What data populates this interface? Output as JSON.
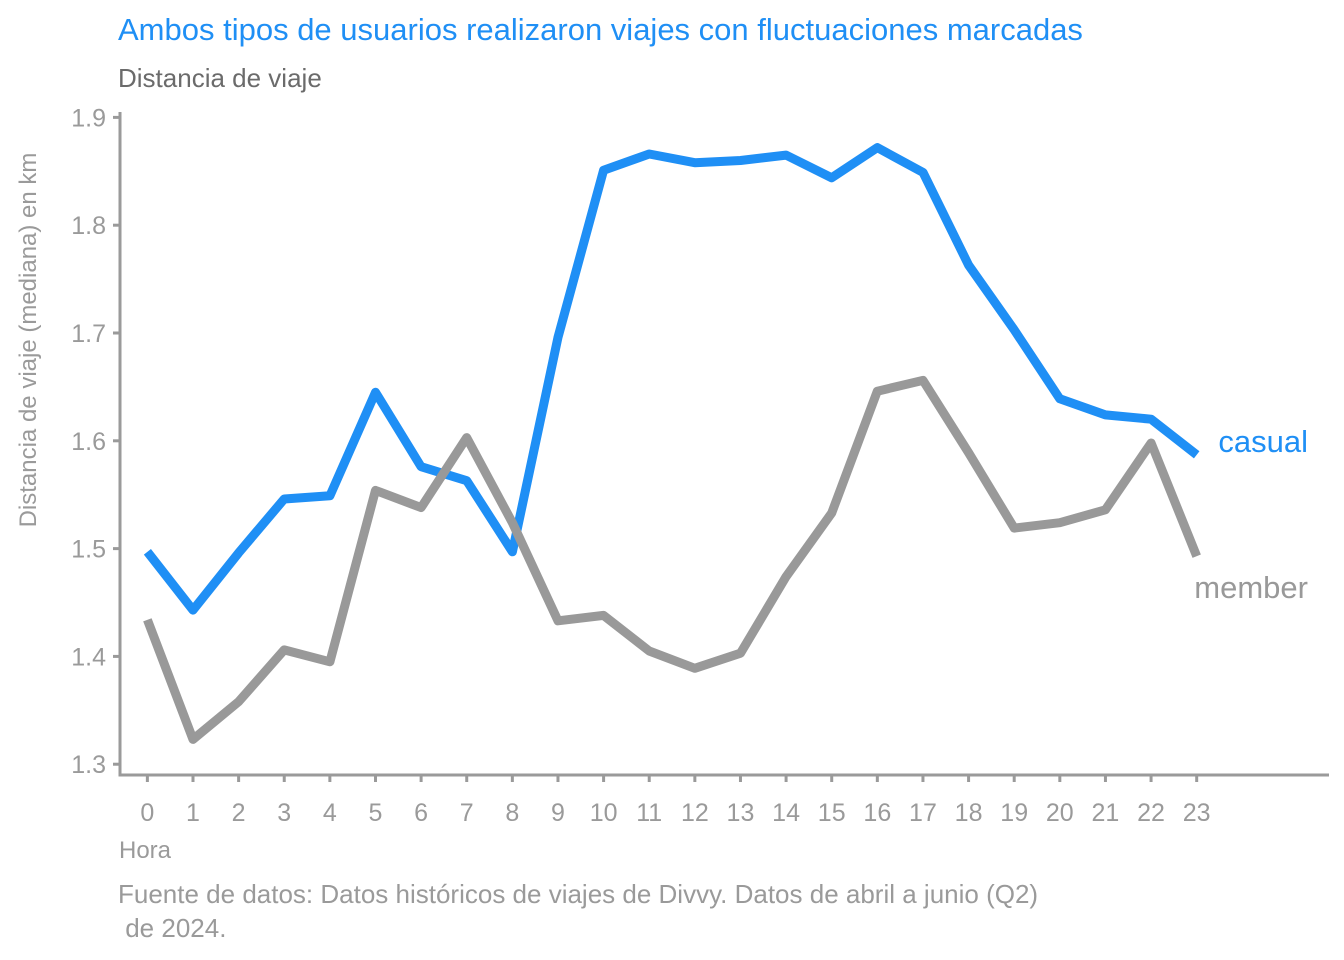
{
  "chart_data": {
    "type": "line",
    "title": "Ambos tipos de usuarios realizaron viajes con fluctuaciones marcadas",
    "subtitle": "Distancia de viaje",
    "xlabel": "Hora",
    "ylabel": "Distancia de viaje (mediana) en km",
    "caption": [
      "Fuente de datos: Datos históricos de viajes de Divvy. Datos de abril a junio (Q2)",
      " de 2024."
    ],
    "x": [
      0,
      1,
      2,
      3,
      4,
      5,
      6,
      7,
      8,
      9,
      10,
      11,
      12,
      13,
      14,
      15,
      16,
      17,
      18,
      19,
      20,
      21,
      22,
      23
    ],
    "xlim": [
      -0.6,
      25.9
    ],
    "ylim": [
      1.29,
      1.905
    ],
    "yticks": [
      1.3,
      1.4,
      1.5,
      1.6,
      1.7,
      1.8,
      1.9
    ],
    "ytick_labels": [
      "1.3",
      "1.4",
      "1.5",
      "1.6",
      "1.7",
      "1.8",
      "1.9"
    ],
    "grid": false,
    "legend": "direct labels at line ends (right)",
    "series": [
      {
        "name": "casual",
        "color": "#1f8ff5",
        "values": [
          1.497,
          1.443,
          1.496,
          1.546,
          1.549,
          1.645,
          1.576,
          1.563,
          1.497,
          1.696,
          1.851,
          1.866,
          1.858,
          1.86,
          1.865,
          1.844,
          1.872,
          1.849,
          1.763,
          1.703,
          1.639,
          1.624,
          1.62,
          1.587
        ]
      },
      {
        "name": "member",
        "color": "#999999",
        "values": [
          1.434,
          1.323,
          1.358,
          1.406,
          1.395,
          1.554,
          1.538,
          1.603,
          1.524,
          1.433,
          1.438,
          1.405,
          1.389,
          1.403,
          1.474,
          1.533,
          1.646,
          1.656,
          1.589,
          1.519,
          1.524,
          1.536,
          1.598,
          1.493
        ]
      }
    ]
  }
}
